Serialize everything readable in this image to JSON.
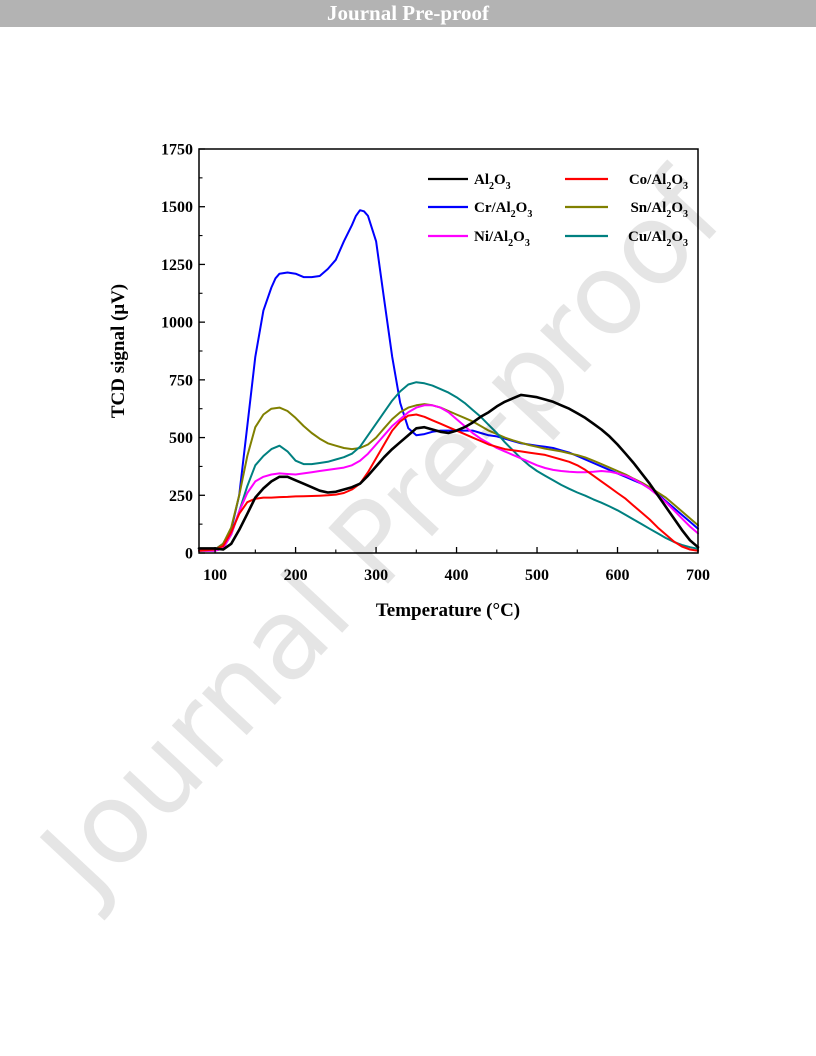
{
  "banner": {
    "title": "Journal Pre-proof"
  },
  "watermark": {
    "text": "Journal Pre-proof"
  },
  "chart_data": {
    "type": "line",
    "xlabel": "Temperature (°C)",
    "ylabel": "TCD signal (μV)",
    "xlim": [
      80,
      700
    ],
    "ylim": [
      0,
      1750
    ],
    "xticks": [
      100,
      200,
      300,
      400,
      500,
      600,
      700
    ],
    "yticks": [
      0,
      250,
      500,
      750,
      1000,
      1250,
      1500,
      1750
    ],
    "grid": false,
    "legend_position": "top-right",
    "series": [
      {
        "name": "Al2O3",
        "color": "#000000",
        "legend": {
          "p1": "Al",
          "s1": "2",
          "p2": "O",
          "s2": "3"
        },
        "x": [
          80,
          100,
          110,
          120,
          130,
          140,
          150,
          160,
          170,
          180,
          190,
          200,
          210,
          220,
          230,
          240,
          250,
          260,
          270,
          280,
          290,
          300,
          310,
          320,
          330,
          340,
          350,
          360,
          370,
          380,
          390,
          400,
          410,
          420,
          430,
          440,
          450,
          460,
          470,
          480,
          490,
          500,
          510,
          520,
          530,
          540,
          550,
          560,
          570,
          580,
          590,
          600,
          610,
          620,
          630,
          640,
          650,
          660,
          670,
          680,
          690,
          700
        ],
        "y": [
          20,
          20,
          15,
          40,
          100,
          170,
          240,
          280,
          310,
          330,
          330,
          315,
          300,
          285,
          270,
          262,
          265,
          275,
          285,
          300,
          335,
          375,
          415,
          450,
          480,
          510,
          540,
          545,
          535,
          525,
          520,
          530,
          545,
          565,
          590,
          610,
          635,
          655,
          670,
          685,
          680,
          675,
          665,
          655,
          640,
          625,
          605,
          585,
          560,
          535,
          505,
          470,
          430,
          390,
          345,
          300,
          250,
          200,
          150,
          100,
          55,
          25
        ]
      },
      {
        "name": "Co/Al2O3",
        "color": "#ff0000",
        "legend": {
          "p1": "Co/Al",
          "s1": "2",
          "p2": "O",
          "s2": "3"
        },
        "x": [
          80,
          100,
          110,
          120,
          130,
          140,
          150,
          160,
          170,
          180,
          190,
          200,
          210,
          220,
          230,
          240,
          250,
          260,
          270,
          280,
          290,
          300,
          310,
          320,
          330,
          340,
          350,
          360,
          370,
          380,
          390,
          400,
          410,
          420,
          430,
          440,
          450,
          460,
          470,
          480,
          490,
          500,
          510,
          520,
          530,
          540,
          550,
          560,
          570,
          580,
          590,
          600,
          610,
          620,
          630,
          640,
          650,
          660,
          670,
          680,
          690,
          700
        ],
        "y": [
          10,
          15,
          30,
          90,
          170,
          220,
          235,
          240,
          240,
          242,
          243,
          245,
          246,
          247,
          248,
          250,
          253,
          260,
          275,
          300,
          350,
          410,
          470,
          530,
          570,
          595,
          600,
          590,
          575,
          560,
          545,
          530,
          515,
          500,
          485,
          470,
          460,
          450,
          445,
          440,
          435,
          430,
          425,
          415,
          405,
          395,
          380,
          360,
          335,
          310,
          285,
          260,
          235,
          205,
          175,
          145,
          110,
          80,
          50,
          28,
          15,
          10
        ]
      },
      {
        "name": "Cr/Al2O3",
        "color": "#0000ff",
        "legend": {
          "p1": "Cr/Al",
          "s1": "2",
          "p2": "O",
          "s2": "3"
        },
        "x": [
          80,
          100,
          110,
          120,
          130,
          140,
          150,
          160,
          170,
          175,
          180,
          190,
          200,
          210,
          220,
          230,
          240,
          250,
          260,
          270,
          275,
          280,
          285,
          290,
          300,
          310,
          320,
          330,
          340,
          350,
          360,
          370,
          380,
          390,
          400,
          410,
          420,
          430,
          440,
          450,
          460,
          470,
          480,
          490,
          500,
          510,
          520,
          530,
          540,
          550,
          560,
          570,
          580,
          590,
          600,
          610,
          620,
          630,
          640,
          650,
          660,
          670,
          680,
          690,
          700
        ],
        "y": [
          10,
          15,
          40,
          100,
          250,
          550,
          850,
          1050,
          1150,
          1190,
          1210,
          1215,
          1210,
          1195,
          1195,
          1200,
          1230,
          1270,
          1350,
          1420,
          1460,
          1485,
          1480,
          1460,
          1350,
          1100,
          850,
          650,
          540,
          510,
          515,
          525,
          530,
          530,
          530,
          530,
          530,
          520,
          510,
          505,
          495,
          485,
          475,
          470,
          465,
          460,
          455,
          445,
          435,
          420,
          405,
          390,
          375,
          360,
          345,
          330,
          315,
          300,
          280,
          255,
          225,
          195,
          165,
          135,
          105
        ]
      },
      {
        "name": "Sn/Al2O3",
        "color": "#808000",
        "legend": {
          "p1": "Sn/Al",
          "s1": "2",
          "p2": "O",
          "s2": "3"
        },
        "x": [
          80,
          100,
          110,
          120,
          130,
          140,
          150,
          160,
          170,
          180,
          190,
          200,
          210,
          220,
          230,
          240,
          250,
          260,
          270,
          280,
          290,
          300,
          310,
          320,
          330,
          340,
          350,
          360,
          370,
          380,
          390,
          400,
          410,
          420,
          430,
          440,
          450,
          460,
          470,
          480,
          490,
          500,
          510,
          520,
          530,
          540,
          550,
          560,
          570,
          580,
          590,
          600,
          610,
          620,
          630,
          640,
          650,
          660,
          670,
          680,
          690,
          700
        ],
        "y": [
          10,
          15,
          40,
          110,
          250,
          420,
          545,
          600,
          625,
          630,
          615,
          585,
          550,
          520,
          495,
          475,
          465,
          455,
          450,
          455,
          470,
          500,
          540,
          580,
          610,
          630,
          640,
          645,
          640,
          630,
          615,
          600,
          585,
          570,
          550,
          530,
          515,
          500,
          488,
          478,
          468,
          460,
          452,
          446,
          440,
          432,
          424,
          414,
          400,
          385,
          370,
          355,
          340,
          322,
          305,
          285,
          262,
          240,
          210,
          180,
          150,
          120
        ]
      },
      {
        "name": "Ni/Al2O3",
        "color": "#ff00ff",
        "legend": {
          "p1": "Ni/Al",
          "s1": "2",
          "p2": "O",
          "s2": "3"
        },
        "x": [
          80,
          100,
          110,
          120,
          130,
          140,
          150,
          160,
          170,
          180,
          190,
          200,
          210,
          220,
          230,
          240,
          250,
          260,
          270,
          280,
          290,
          300,
          310,
          320,
          330,
          340,
          350,
          360,
          370,
          380,
          390,
          400,
          410,
          420,
          430,
          440,
          450,
          460,
          470,
          480,
          490,
          500,
          510,
          520,
          530,
          540,
          550,
          560,
          570,
          580,
          590,
          600,
          610,
          620,
          630,
          640,
          650,
          660,
          670,
          680,
          690,
          700
        ],
        "y": [
          10,
          10,
          20,
          80,
          180,
          260,
          310,
          330,
          340,
          345,
          342,
          340,
          345,
          350,
          355,
          360,
          365,
          370,
          380,
          400,
          430,
          470,
          510,
          550,
          580,
          610,
          630,
          640,
          640,
          630,
          610,
          580,
          550,
          520,
          495,
          475,
          455,
          440,
          425,
          410,
          395,
          380,
          368,
          360,
          355,
          352,
          350,
          350,
          352,
          355,
          352,
          345,
          335,
          320,
          300,
          278,
          250,
          220,
          185,
          150,
          115,
          85
        ]
      },
      {
        "name": "Cu/Al2O3",
        "color": "#008080",
        "legend": {
          "p1": "Cu/Al",
          "s1": "2",
          "p2": "O",
          "s2": "3"
        },
        "x": [
          80,
          100,
          110,
          120,
          130,
          140,
          150,
          160,
          170,
          180,
          190,
          200,
          210,
          220,
          230,
          240,
          250,
          260,
          270,
          280,
          290,
          300,
          310,
          320,
          330,
          340,
          350,
          360,
          370,
          380,
          390,
          400,
          410,
          420,
          430,
          440,
          450,
          460,
          470,
          480,
          490,
          500,
          510,
          520,
          530,
          540,
          550,
          560,
          570,
          580,
          590,
          600,
          610,
          620,
          630,
          640,
          650,
          660,
          670,
          680,
          690,
          700
        ],
        "y": [
          10,
          10,
          20,
          80,
          180,
          290,
          380,
          420,
          450,
          465,
          440,
          400,
          385,
          385,
          390,
          395,
          405,
          415,
          430,
          460,
          510,
          560,
          610,
          660,
          700,
          730,
          740,
          735,
          725,
          710,
          695,
          675,
          650,
          620,
          590,
          555,
          520,
          480,
          445,
          410,
          380,
          355,
          335,
          315,
          295,
          278,
          262,
          248,
          232,
          218,
          202,
          185,
          165,
          145,
          125,
          105,
          85,
          65,
          48,
          35,
          25,
          18
        ]
      }
    ]
  }
}
